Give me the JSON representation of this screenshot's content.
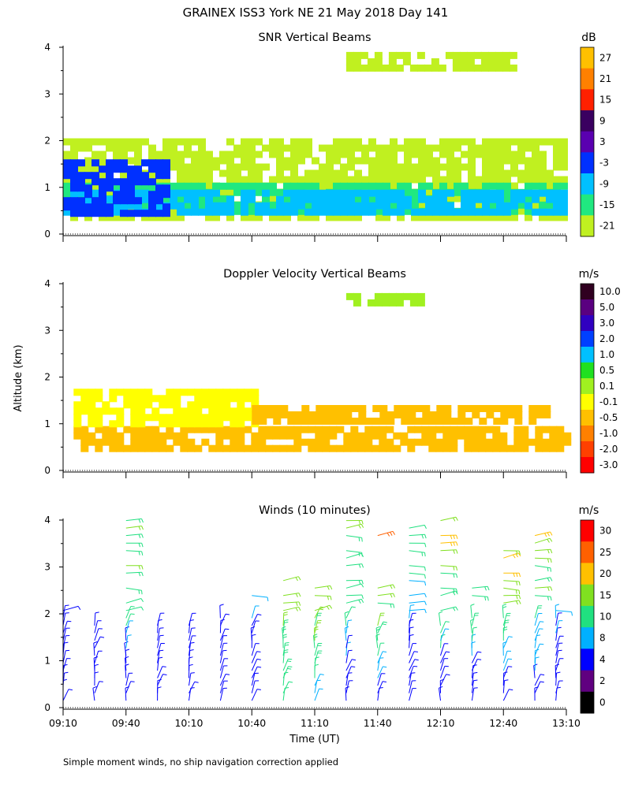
{
  "title": "GRAINEX ISS3 York NE  21 May 2018 Day 141",
  "footnote": "Simple moment winds, no ship navigation correction applied",
  "shared_ylabel": "Altitude (km)",
  "chart_data": [
    {
      "type": "heatmap",
      "title": "SNR Vertical Beams",
      "xlabel": "",
      "ylabel": "",
      "ylim": [
        0,
        4
      ],
      "xlim": [
        "09:10",
        "13:10"
      ],
      "y_ticks": [
        "0",
        "1",
        "2",
        "3",
        "4"
      ],
      "colorbar": {
        "unit": "dB",
        "levels": [
          "27",
          "21",
          "15",
          "9",
          "3",
          "-3",
          "-9",
          "-15",
          "-21"
        ],
        "colors": [
          "#ffc000",
          "#ff8000",
          "#ff2000",
          "#3a0060",
          "#5a00b0",
          "#0030ff",
          "#00c0ff",
          "#20e880",
          "#c0f020"
        ]
      },
      "layers": [
        {
          "level": "-21",
          "y_range": [
            0.3,
            2.05
          ],
          "x_range": [
            "09:10",
            "13:10"
          ]
        },
        {
          "level": "-15",
          "y_range": [
            0.45,
            1.1
          ],
          "x_range": [
            "09:10",
            "13:10"
          ]
        },
        {
          "level": "-9",
          "y_range": [
            0.5,
            0.95
          ],
          "x_range": [
            "09:10",
            "13:10"
          ]
        },
        {
          "level": "-3",
          "y_range": [
            0.4,
            1.6
          ],
          "x_range": [
            "09:10",
            "10:00"
          ]
        },
        {
          "level": "-21",
          "y_range": [
            3.55,
            3.9
          ],
          "x_range": [
            "11:25",
            "12:45"
          ]
        }
      ]
    },
    {
      "type": "heatmap",
      "title": "Doppler Velocity Vertical Beams",
      "xlabel": "",
      "ylabel": "",
      "ylim": [
        0,
        4
      ],
      "xlim": [
        "09:10",
        "13:10"
      ],
      "y_ticks": [
        "0",
        "1",
        "2",
        "3",
        "4"
      ],
      "colorbar": {
        "unit": "m/s",
        "levels": [
          "10.0",
          "5.0",
          "3.0",
          "2.0",
          "1.0",
          "0.5",
          "0.1",
          "-0.1",
          "-0.5",
          "-1.0",
          "-2.0",
          "-3.0"
        ],
        "colors": [
          "#300020",
          "#5a0080",
          "#3000c0",
          "#0040ff",
          "#00c0ff",
          "#20e020",
          "#a0f020",
          "#ffff00",
          "#ffc000",
          "#ff8000",
          "#ff4000",
          "#ff0000"
        ]
      },
      "layers": [
        {
          "level": "-0.5",
          "y_range": [
            0.45,
            0.95
          ],
          "x_range": [
            "09:15",
            "13:10"
          ]
        },
        {
          "level": "-0.1",
          "y_range": [
            0.95,
            1.75
          ],
          "x_range": [
            "09:15",
            "10:40"
          ]
        },
        {
          "level": "-0.5",
          "y_range": [
            1.0,
            1.4
          ],
          "x_range": [
            "10:40",
            "13:00"
          ]
        },
        {
          "level": "0.1",
          "y_range": [
            3.6,
            3.8
          ],
          "x_range": [
            "11:25",
            "12:00"
          ]
        }
      ]
    },
    {
      "type": "wind-barbs",
      "title": "Winds (10 minutes)",
      "xlabel": "Time (UT)",
      "ylabel": "",
      "ylim": [
        0,
        4
      ],
      "xlim": [
        "09:10",
        "13:10"
      ],
      "x_ticks": [
        "09:10",
        "09:40",
        "10:10",
        "10:40",
        "11:10",
        "11:40",
        "12:10",
        "12:40",
        "13:10"
      ],
      "y_ticks": [
        "0",
        "1",
        "2",
        "3",
        "4"
      ],
      "colorbar": {
        "unit": "m/s",
        "levels": [
          "30",
          "25",
          "20",
          "15",
          "10",
          "8",
          "4",
          "2",
          "0"
        ],
        "colors": [
          "#ff0000",
          "#ff6000",
          "#ffc000",
          "#80e020",
          "#20e080",
          "#00b0ff",
          "#0000ff",
          "#600080",
          "#000000"
        ]
      },
      "profiles": [
        {
          "time": "09:10",
          "top_km": 2.2,
          "speed_low": 4,
          "speed_high": 8
        },
        {
          "time": "09:25",
          "top_km": 1.8,
          "speed_low": 4,
          "speed_high": 8
        },
        {
          "time": "09:40",
          "top_km": 4.0,
          "speed_low": 4,
          "speed_high": 20
        },
        {
          "time": "09:55",
          "top_km": 1.8,
          "speed_low": 4,
          "speed_high": 8
        },
        {
          "time": "10:10",
          "top_km": 1.8,
          "speed_low": 4,
          "speed_high": 8
        },
        {
          "time": "10:25",
          "top_km": 2.2,
          "speed_low": 4,
          "speed_high": 10
        },
        {
          "time": "10:40",
          "top_km": 2.5,
          "speed_low": 4,
          "speed_high": 15
        },
        {
          "time": "10:55",
          "top_km": 2.8,
          "speed_low": 10,
          "speed_high": 25
        },
        {
          "time": "11:10",
          "top_km": 2.6,
          "speed_low": 8,
          "speed_high": 30
        },
        {
          "time": "11:25",
          "top_km": 4.0,
          "speed_low": 4,
          "speed_high": 20
        },
        {
          "time": "11:40",
          "top_km": 4.0,
          "speed_low": 4,
          "speed_high": 30
        },
        {
          "time": "11:55",
          "top_km": 4.0,
          "speed_low": 4,
          "speed_high": 15
        },
        {
          "time": "12:10",
          "top_km": 4.0,
          "speed_low": 4,
          "speed_high": 25
        },
        {
          "time": "12:25",
          "top_km": 2.6,
          "speed_low": 4,
          "speed_high": 25
        },
        {
          "time": "12:40",
          "top_km": 3.7,
          "speed_low": 4,
          "speed_high": 30
        },
        {
          "time": "12:55",
          "top_km": 3.8,
          "speed_low": 4,
          "speed_high": 25
        },
        {
          "time": "13:05",
          "top_km": 2.2,
          "speed_low": 4,
          "speed_high": 15
        }
      ]
    }
  ]
}
